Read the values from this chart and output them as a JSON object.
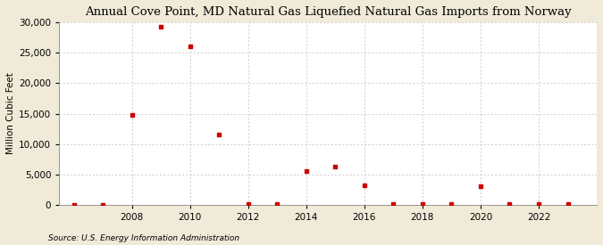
{
  "title": "Annual Cove Point, MD Natural Gas Liquefied Natural Gas Imports from Norway",
  "ylabel": "Million Cubic Feet",
  "source": "Source: U.S. Energy Information Administration",
  "fig_background_color": "#f0ead8",
  "plot_background_color": "#ffffff",
  "marker_color": "#cc0000",
  "years": [
    2006,
    2007,
    2008,
    2009,
    2010,
    2011,
    2012,
    2013,
    2014,
    2015,
    2016,
    2017,
    2018,
    2019,
    2020,
    2021,
    2022,
    2023
  ],
  "values": [
    0,
    0,
    14837,
    29268,
    26049,
    11536,
    50,
    50,
    5484,
    6229,
    3227,
    50,
    50,
    50,
    2999,
    50,
    50,
    50
  ],
  "ylim": [
    0,
    30000
  ],
  "xlim": [
    2005.5,
    2024
  ],
  "yticks": [
    0,
    5000,
    10000,
    15000,
    20000,
    25000,
    30000
  ],
  "xticks": [
    2008,
    2010,
    2012,
    2014,
    2016,
    2018,
    2020,
    2022
  ],
  "grid_color": "#bbbbbb",
  "title_fontsize": 9.5,
  "label_fontsize": 7.5,
  "tick_fontsize": 7.5,
  "source_fontsize": 6.5
}
